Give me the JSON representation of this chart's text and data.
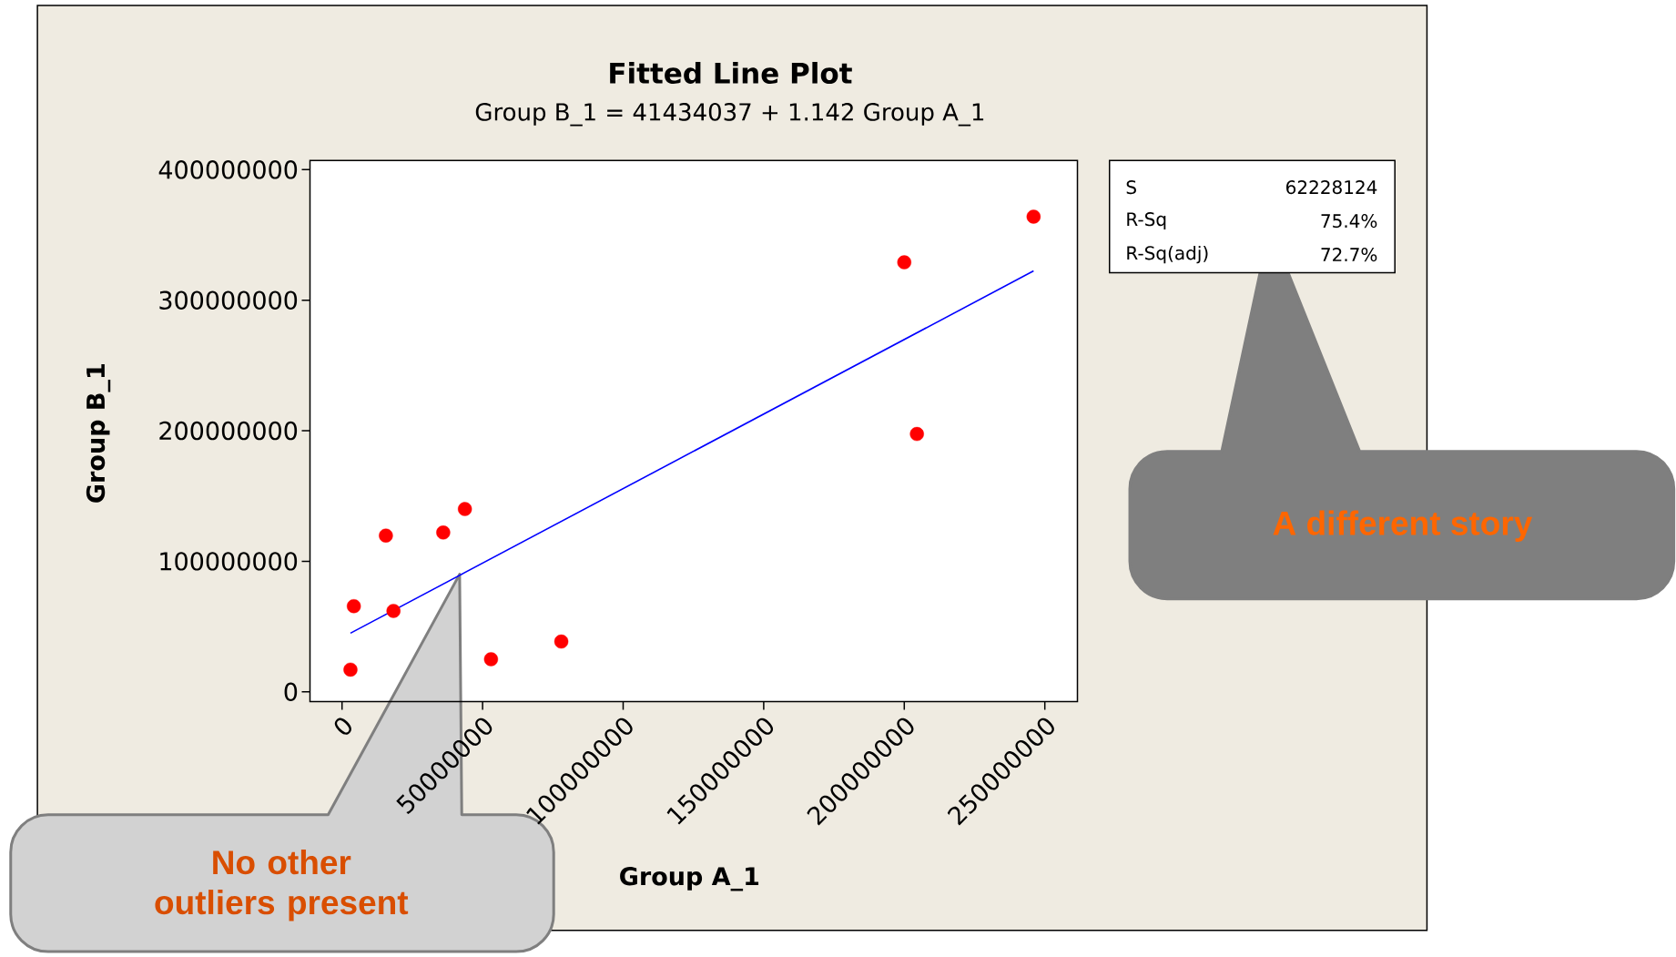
{
  "chart_data": {
    "type": "scatter",
    "title": "Fitted Line Plot",
    "subtitle": "Group B_1 =  41434037 + 1.142 Group A_1",
    "xlabel": "Group A_1",
    "ylabel": "Group B_1",
    "xlim": [
      -11400000,
      261600000
    ],
    "ylim": [
      -7400000,
      407000000
    ],
    "xticks": [
      0,
      50000000,
      100000000,
      150000000,
      200000000,
      250000000
    ],
    "yticks": [
      0,
      100000000,
      200000000,
      300000000,
      400000000
    ],
    "series": [
      {
        "color": "#ff0000",
        "marker": "circle",
        "x": [
          3000000,
          4200000,
          15600000,
          18300000,
          36000000,
          43700000,
          53000000,
          78000000,
          200000000,
          204500000,
          246000000
        ],
        "values": [
          17000000,
          65600000,
          119700000,
          62000000,
          122000000,
          140000000,
          25000000,
          38500000,
          329000000,
          197500000,
          364000000
        ]
      },
      {
        "type": "line",
        "color": "#0000ff",
        "marker": "none",
        "line_style": "solid",
        "x": [
          3000000,
          246000000
        ],
        "values": [
          44900000,
          322400000
        ]
      }
    ],
    "annotations": [
      "S",
      "62228124",
      "R-Sq",
      "75.4%",
      "R-Sq(adj)",
      "72.7%",
      "A different story",
      "No other outliers present"
    ]
  }
}
